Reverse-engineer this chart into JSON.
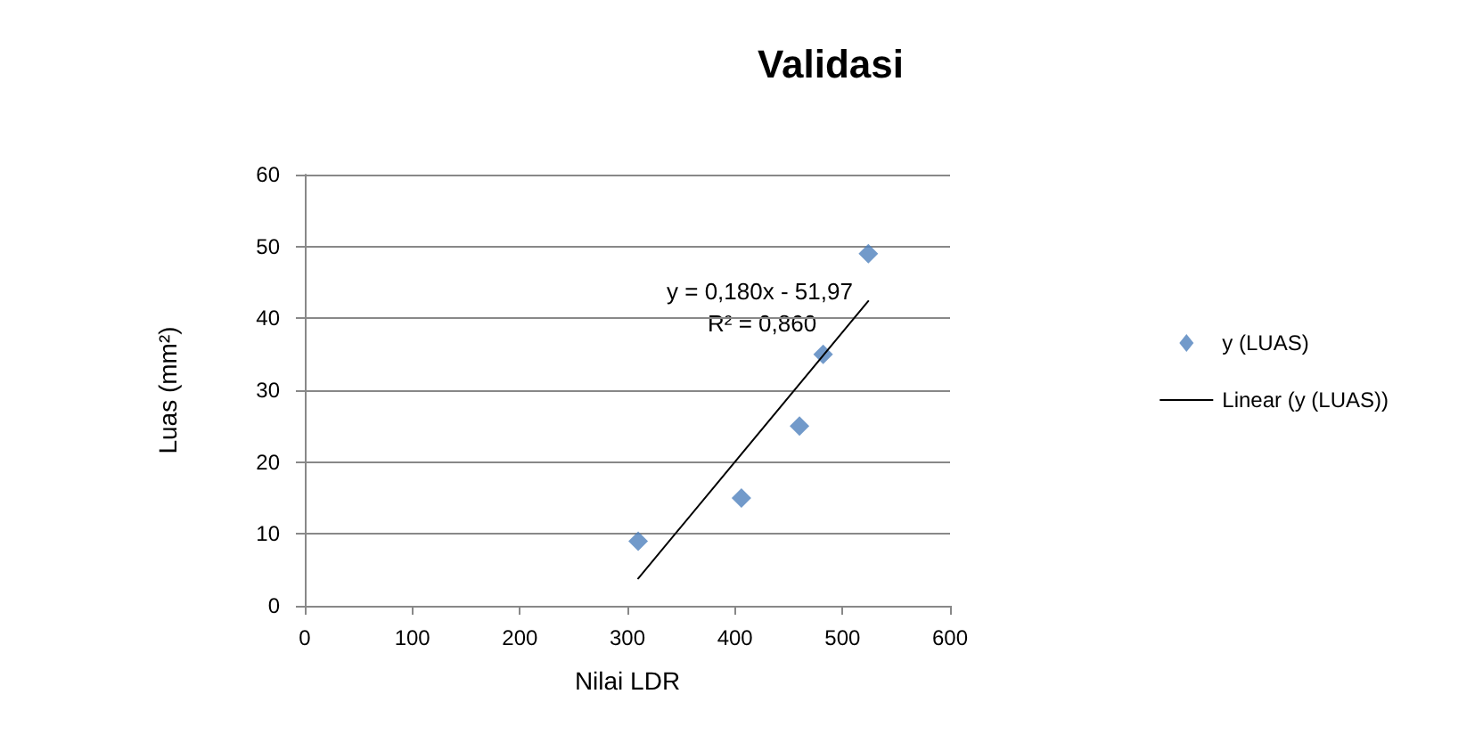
{
  "chart_data": {
    "type": "scatter",
    "title": "Validasi",
    "xlabel": "Nilai LDR",
    "ylabel": "Luas (mm²)",
    "annotations": [
      "y = 0,180x - 51,97",
      "R² = 0,860"
    ],
    "series": [
      {
        "name": "y (LUAS)",
        "color": "#4f81bd",
        "marker": "diamond",
        "x": [
          310,
          406,
          460,
          482,
          524
        ],
        "values": [
          9,
          15,
          25,
          35,
          49
        ]
      },
      {
        "name": "Linear (y (LUAS))",
        "type": "line",
        "color": "#000000",
        "marker": "none",
        "x": [
          310,
          524
        ],
        "values": [
          3.8,
          42.4
        ]
      }
    ],
    "xlim": [
      0,
      600
    ],
    "xticks": [
      0,
      100,
      200,
      300,
      400,
      500,
      600
    ],
    "ylim": [
      0,
      60
    ],
    "yticks": [
      0,
      10,
      20,
      30,
      40,
      50,
      60
    ],
    "grid": "y",
    "legend": "right"
  }
}
